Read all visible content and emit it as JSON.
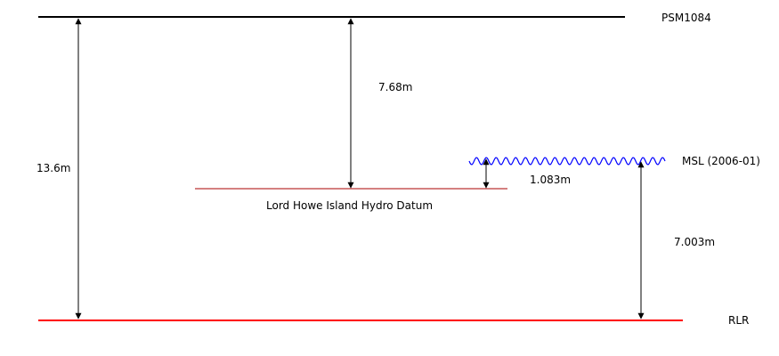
{
  "levels": {
    "psm": "PSM1084",
    "msl": "MSL (2006-01)",
    "rlr": "RLR",
    "hydro_datum": "Lord Howe Island Hydro Datum"
  },
  "distances": {
    "psm_to_rlr": "13.6m",
    "psm_to_hydro": "7.68m",
    "hydro_to_msl": "1.083m",
    "rlr_to_msl": "7.003m"
  },
  "colors": {
    "psm_line": "#000000",
    "rlr_line": "#ff0000",
    "hydro_line": "#aa0000",
    "msl_wave": "#0000ff",
    "arrows": "#000000"
  }
}
